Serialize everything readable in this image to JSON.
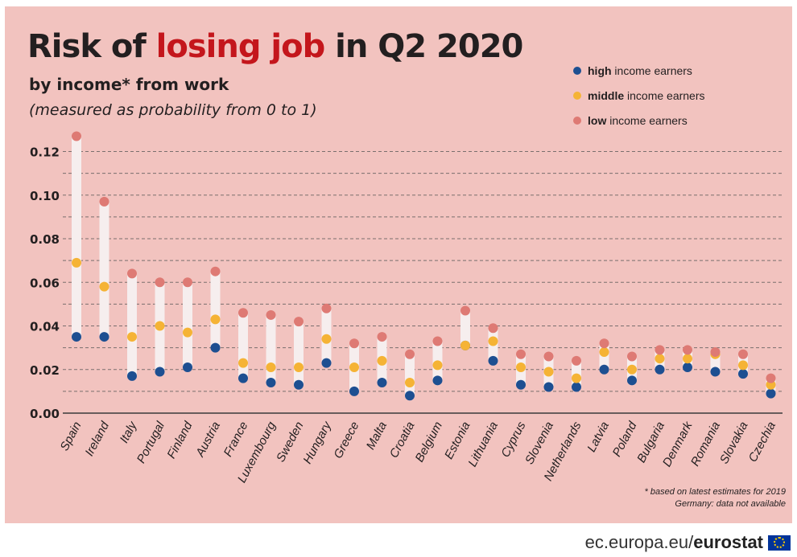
{
  "header": {
    "title_part1": "Risk of ",
    "title_highlight": "losing job",
    "title_part2": " in Q2 2020",
    "subtitle": "by income* from work",
    "subtitle_note": "(measured as probability from 0 to 1)"
  },
  "legend": [
    {
      "bold": "high",
      "rest": " income earners",
      "color": "#1d4f91"
    },
    {
      "bold": "middle",
      "rest": " income earners",
      "color": "#f5b335"
    },
    {
      "bold": "low",
      "rest": " income earners",
      "color": "#de7a74"
    }
  ],
  "footnote": {
    "line1": "* based on latest estimates for 2019",
    "line2": "Germany: data not available"
  },
  "source": {
    "prefix": "ec.europa.eu/",
    "brand": "eurostat"
  },
  "colors": {
    "background": "#f2c3bf",
    "high": "#1d4f91",
    "middle": "#f5b335",
    "low": "#de7a74",
    "range_bar": "#f6eeee",
    "title_highlight": "#c4161c"
  },
  "icons": {
    "flag": "eu-flag-icon"
  },
  "chart_data": {
    "type": "scatter",
    "title": "Risk of losing job in Q2 2020",
    "ylim": [
      0,
      0.125
    ],
    "yticks": [
      "0.00",
      "0.02",
      "0.04",
      "0.06",
      "0.08",
      "0.10",
      "0.12"
    ],
    "grid": true,
    "legend_position": "top-right",
    "categories": [
      "Spain",
      "Ireland",
      "Italy",
      "Portugal",
      "Finland",
      "Austria",
      "France",
      "Luxembourg",
      "Sweden",
      "Hungary",
      "Greece",
      "Malta",
      "Croatia",
      "Belgium",
      "Estonia",
      "Lithuania",
      "Cyprus",
      "Slovenia",
      "Netherlands",
      "Latvia",
      "Poland",
      "Bulgaria",
      "Denmark",
      "Romania",
      "Slovakia",
      "Czechia"
    ],
    "series": [
      {
        "name": "high income earners",
        "values": [
          0.035,
          0.035,
          0.017,
          0.019,
          0.021,
          0.03,
          0.016,
          0.014,
          0.013,
          0.023,
          0.01,
          0.014,
          0.008,
          0.015,
          0.031,
          0.024,
          0.013,
          0.012,
          0.012,
          0.02,
          0.015,
          0.02,
          0.021,
          0.019,
          0.018,
          0.009
        ]
      },
      {
        "name": "middle income earners",
        "values": [
          0.069,
          0.058,
          0.035,
          0.04,
          0.037,
          0.043,
          0.023,
          0.021,
          0.021,
          0.034,
          0.021,
          0.024,
          0.014,
          0.022,
          0.031,
          0.033,
          0.021,
          0.019,
          0.016,
          0.028,
          0.02,
          0.025,
          0.025,
          0.027,
          0.022,
          0.013
        ]
      },
      {
        "name": "low income earners",
        "values": [
          0.127,
          0.097,
          0.064,
          0.06,
          0.06,
          0.065,
          0.046,
          0.045,
          0.042,
          0.048,
          0.032,
          0.035,
          0.027,
          0.033,
          0.047,
          0.039,
          0.027,
          0.026,
          0.024,
          0.032,
          0.026,
          0.029,
          0.029,
          0.028,
          0.027,
          0.016
        ]
      }
    ]
  }
}
